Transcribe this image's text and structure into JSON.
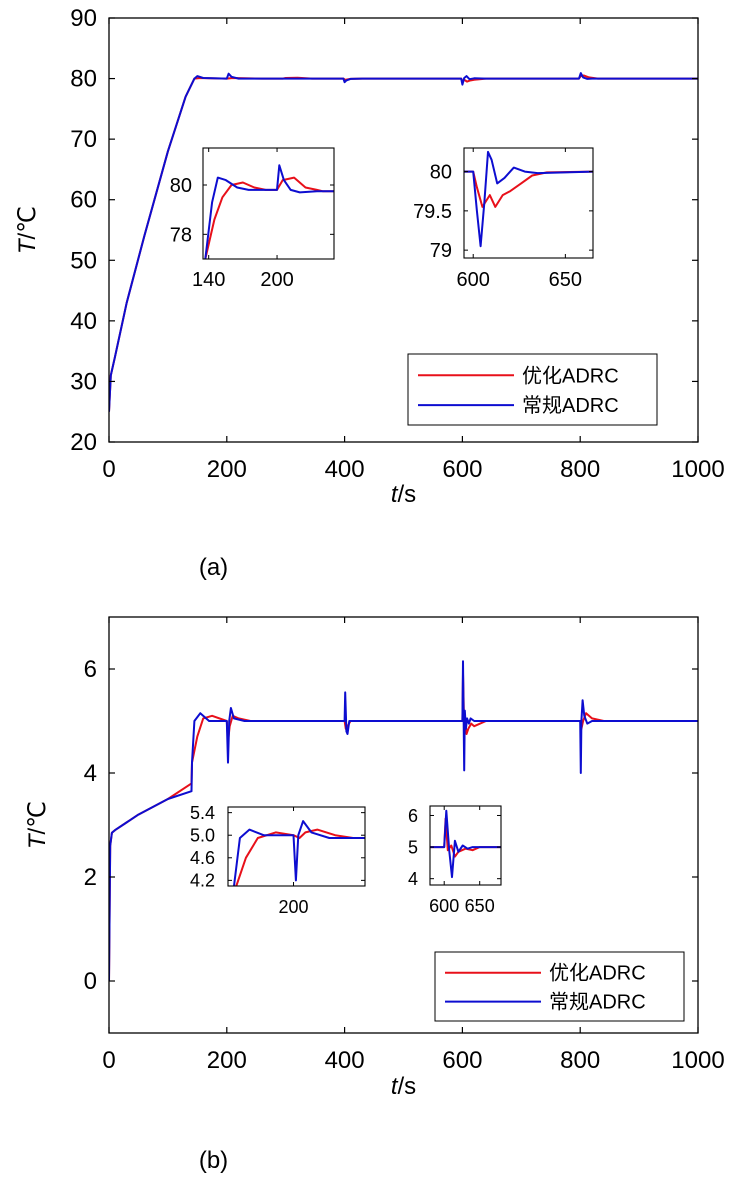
{
  "colors": {
    "optimized": "#e8101a",
    "conventional": "#0d0dd0",
    "axis": "#000000",
    "background": "#ffffff"
  },
  "chart_data": [
    {
      "type": "line",
      "panel_label": "(a)",
      "xlabel_italic": "t",
      "xlabel_unit": "/s",
      "ylabel_italic": "T",
      "ylabel_unit": "/℃",
      "xlim": [
        0,
        1000
      ],
      "ylim": [
        20,
        90
      ],
      "xticks": [
        0,
        200,
        400,
        600,
        800,
        1000
      ],
      "yticks": [
        20,
        30,
        40,
        50,
        60,
        70,
        80,
        90
      ],
      "grid": false,
      "legend_position": "lower-right",
      "series": [
        {
          "name": "优化ADRC",
          "color_key": "optimized",
          "x": [
            0,
            3,
            10,
            30,
            60,
            100,
            130,
            145,
            155,
            170,
            200,
            210,
            230,
            260,
            295,
            300,
            320,
            345,
            398,
            401,
            404,
            410,
            430,
            598,
            600,
            604,
            608,
            612,
            620,
            640,
            798,
            801,
            806,
            815,
            830,
            1000
          ],
          "y": [
            25,
            31,
            34,
            43,
            54,
            68,
            77,
            80,
            80.1,
            80.05,
            80,
            80.1,
            80.05,
            80,
            80,
            80.1,
            80.15,
            80,
            80,
            79.8,
            79.85,
            79.95,
            80,
            80,
            79.6,
            79.75,
            79.5,
            79.65,
            79.8,
            80,
            80,
            80.4,
            80.5,
            80.2,
            80,
            80
          ]
        },
        {
          "name": "常规ADRC",
          "color_key": "conventional",
          "x": [
            0,
            3,
            10,
            30,
            60,
            100,
            130,
            145,
            150,
            160,
            200,
            203,
            208,
            220,
            345,
            398,
            400,
            403,
            410,
            430,
            598,
            600,
            603,
            607,
            612,
            620,
            640,
            798,
            801,
            805,
            812,
            820,
            1000
          ],
          "y": [
            25,
            31,
            34,
            43,
            54,
            68,
            77,
            80,
            80.4,
            80.1,
            80,
            80.8,
            80.3,
            80,
            80,
            80,
            79.4,
            79.7,
            79.95,
            80,
            80,
            79,
            80.1,
            80.4,
            79.9,
            80.05,
            80,
            80,
            80.9,
            80.2,
            79.95,
            80,
            80
          ]
        }
      ],
      "insets": [
        {
          "xlim": [
            135,
            250
          ],
          "ylim": [
            77,
            81.5
          ],
          "xticks": [
            140,
            200
          ],
          "yticks": [
            78,
            80
          ],
          "series": [
            {
              "name": "优化ADRC",
              "color_key": "optimized",
              "x": [
                137,
                145,
                152,
                160,
                170,
                180,
                190,
                200,
                205,
                215,
                225,
                235,
                240,
                250
              ],
              "y": [
                77,
                78.6,
                79.5,
                80,
                80.1,
                79.9,
                79.8,
                79.8,
                80.2,
                80.3,
                79.9,
                79.8,
                79.75,
                79.75
              ]
            },
            {
              "name": "常规ADRC",
              "color_key": "conventional",
              "x": [
                137,
                143,
                148,
                155,
                165,
                175,
                200,
                202,
                206,
                212,
                220,
                235,
                250
              ],
              "y": [
                77,
                79.3,
                80.3,
                80.2,
                79.9,
                79.8,
                79.8,
                80.8,
                80.2,
                79.8,
                79.7,
                79.75,
                79.75
              ]
            }
          ]
        },
        {
          "xlim": [
            595,
            665
          ],
          "ylim": [
            78.9,
            80.3
          ],
          "xticks": [
            600,
            650
          ],
          "yticks": [
            79,
            79.5,
            80
          ],
          "series": [
            {
              "name": "优化ADRC",
              "color_key": "optimized",
              "x": [
                595,
                600,
                602,
                605,
                609,
                612,
                616,
                620,
                626,
                632,
                640,
                665
              ],
              "y": [
                80,
                80,
                79.8,
                79.55,
                79.7,
                79.55,
                79.7,
                79.75,
                79.85,
                79.95,
                79.99,
                80
              ]
            },
            {
              "name": "常规ADRC",
              "color_key": "conventional",
              "x": [
                595,
                600,
                602,
                604,
                606,
                608,
                610,
                613,
                617,
                622,
                628,
                635,
                665
              ],
              "y": [
                80,
                80,
                79.5,
                79.05,
                79.6,
                80.25,
                80.15,
                79.85,
                79.92,
                80.05,
                80,
                79.98,
                80
              ]
            }
          ]
        }
      ]
    },
    {
      "type": "line",
      "panel_label": "(b)",
      "xlabel_italic": "t",
      "xlabel_unit": "/s",
      "ylabel_italic": "T",
      "ylabel_unit": "/℃",
      "xlim": [
        0,
        1000
      ],
      "ylim": [
        -1,
        7
      ],
      "xticks": [
        0,
        200,
        400,
        600,
        800,
        1000
      ],
      "yticks": [
        0,
        2,
        4,
        6
      ],
      "grid": false,
      "legend_position": "lower-right",
      "series": [
        {
          "name": "优化ADRC",
          "color_key": "optimized",
          "x": [
            0,
            2,
            5,
            10,
            50,
            100,
            140,
            141,
            150,
            160,
            175,
            200,
            202,
            205,
            210,
            220,
            240,
            300,
            400,
            402,
            405,
            410,
            420,
            600,
            601,
            603,
            605,
            607,
            610,
            615,
            620,
            640,
            800,
            802,
            805,
            810,
            820,
            840,
            1000
          ],
          "y": [
            0,
            2.6,
            2.85,
            2.9,
            3.2,
            3.5,
            3.8,
            4.2,
            4.7,
            5.05,
            5.1,
            5.0,
            4.6,
            4.9,
            5.1,
            5.05,
            5.0,
            5.0,
            5.0,
            4.85,
            4.9,
            5.0,
            5.0,
            5.0,
            5.9,
            4.9,
            5.0,
            4.75,
            4.85,
            4.95,
            4.9,
            5.0,
            5.0,
            4.85,
            5.0,
            5.15,
            5.05,
            5.0,
            5.0
          ]
        },
        {
          "name": "常规ADRC",
          "color_key": "conventional",
          "x": [
            0,
            2,
            5,
            10,
            50,
            100,
            140,
            141,
            145,
            155,
            170,
            200,
            202,
            204,
            207,
            212,
            230,
            400,
            401,
            403,
            405,
            408,
            415,
            600,
            601,
            602,
            603,
            604,
            606,
            608,
            611,
            614,
            620,
            800,
            801,
            802,
            804,
            807,
            812,
            820,
            1000
          ],
          "y": [
            0,
            2.6,
            2.85,
            2.9,
            3.2,
            3.5,
            3.65,
            4.2,
            5.0,
            5.15,
            5.0,
            5.0,
            4.2,
            5.0,
            5.25,
            5.05,
            5.0,
            5.0,
            5.55,
            4.8,
            4.75,
            5.0,
            5.0,
            5.0,
            6.15,
            5.1,
            4.05,
            5.2,
            4.85,
            5.05,
            4.95,
            5.05,
            5.0,
            5.0,
            4.0,
            5.0,
            5.4,
            5.1,
            4.95,
            5.0,
            5.0
          ]
        }
      ],
      "insets": [
        {
          "xlim": [
            145,
            260
          ],
          "ylim": [
            4.1,
            5.5
          ],
          "xticks": [
            200
          ],
          "yticks": [
            4.2,
            4.6,
            5.0,
            5.4
          ],
          "series": [
            {
              "name": "优化ADRC",
              "color_key": "optimized",
              "x": [
                152,
                160,
                170,
                185,
                200,
                205,
                210,
                220,
                235,
                250,
                260
              ],
              "y": [
                4.1,
                4.6,
                4.95,
                5.05,
                5.0,
                4.95,
                5.05,
                5.1,
                5.0,
                4.95,
                4.95
              ]
            },
            {
              "name": "常规ADRC",
              "color_key": "conventional",
              "x": [
                150,
                155,
                163,
                175,
                200,
                202,
                204,
                208,
                215,
                230,
                260
              ],
              "y": [
                4.1,
                4.95,
                5.1,
                5.0,
                5.0,
                4.2,
                5.0,
                5.25,
                5.05,
                4.95,
                4.95
              ]
            }
          ]
        },
        {
          "xlim": [
            580,
            680
          ],
          "ylim": [
            3.8,
            6.3
          ],
          "xticks": [
            600,
            650
          ],
          "yticks": [
            4,
            5,
            6
          ],
          "series": [
            {
              "name": "优化ADRC",
              "color_key": "optimized",
              "x": [
                580,
                600,
                602,
                605,
                610,
                615,
                620,
                630,
                640,
                650,
                680
              ],
              "y": [
                5,
                5,
                5.9,
                4.9,
                5.05,
                4.7,
                4.85,
                4.95,
                4.9,
                5.0,
                5.0
              ]
            },
            {
              "name": "常规ADRC",
              "color_key": "conventional",
              "x": [
                580,
                600,
                603,
                607,
                611,
                615,
                620,
                626,
                633,
                640,
                680
              ],
              "y": [
                5,
                5,
                6.15,
                4.9,
                4.05,
                5.2,
                4.85,
                5.05,
                4.95,
                5.0,
                5.0
              ]
            }
          ]
        }
      ]
    }
  ]
}
